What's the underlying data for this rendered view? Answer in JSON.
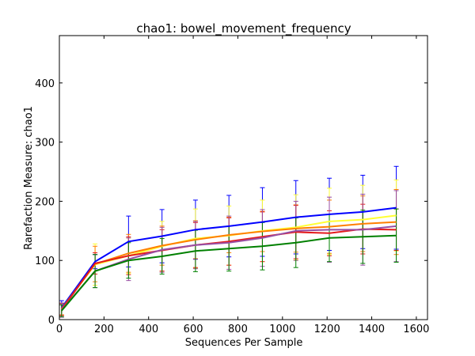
{
  "chart_data": {
    "type": "line",
    "title": "chao1: bowel_movement_frequency",
    "xlabel": "Sequences Per Sample",
    "ylabel": "Rarefaction Measure: chao1",
    "xlim": [
      0,
      1650
    ],
    "ylim": [
      0,
      480
    ],
    "xticks": [
      0,
      200,
      400,
      600,
      800,
      1000,
      1200,
      1400,
      1600
    ],
    "yticks": [
      0,
      100,
      200,
      300,
      400
    ],
    "grid": false,
    "x": [
      10,
      160,
      310,
      460,
      610,
      760,
      910,
      1060,
      1210,
      1360,
      1510
    ],
    "series": [
      {
        "color": "#0000ff",
        "values": [
          20,
          98,
          132,
          141,
          152,
          158,
          165,
          173,
          178,
          182,
          189
        ],
        "err": [
          12,
          12,
          43,
          45,
          50,
          52,
          58,
          62,
          61,
          62,
          70
        ]
      },
      {
        "color": "#ffff33",
        "values": [
          18,
          93,
          108,
          124,
          137,
          142,
          150,
          156,
          166,
          169,
          176
        ],
        "err": [
          10,
          35,
          30,
          42,
          50,
          50,
          52,
          55,
          56,
          58,
          60
        ]
      },
      {
        "color": "#ff7f00",
        "values": [
          18,
          94,
          112,
          125,
          135,
          143,
          149,
          154,
          157,
          162,
          165
        ],
        "err": [
          10,
          30,
          32,
          33,
          32,
          30,
          34,
          40,
          45,
          47,
          55
        ]
      },
      {
        "color": "#e41a1c",
        "values": [
          17,
          95,
          108,
          117,
          126,
          132,
          140,
          148,
          146,
          153,
          152
        ],
        "err": [
          10,
          18,
          32,
          35,
          38,
          40,
          42,
          45,
          38,
          42,
          35
        ]
      },
      {
        "color": "#984ea3",
        "values": [
          16,
          82,
          102,
          118,
          126,
          130,
          138,
          150,
          152,
          152,
          158
        ],
        "err": [
          12,
          28,
          36,
          38,
          40,
          45,
          48,
          50,
          55,
          60,
          60
        ]
      },
      {
        "color": "#008000",
        "values": [
          15,
          82,
          100,
          107,
          116,
          120,
          124,
          130,
          138,
          140,
          142
        ],
        "err": [
          10,
          28,
          30,
          30,
          35,
          38,
          40,
          42,
          40,
          45,
          45
        ]
      }
    ]
  }
}
